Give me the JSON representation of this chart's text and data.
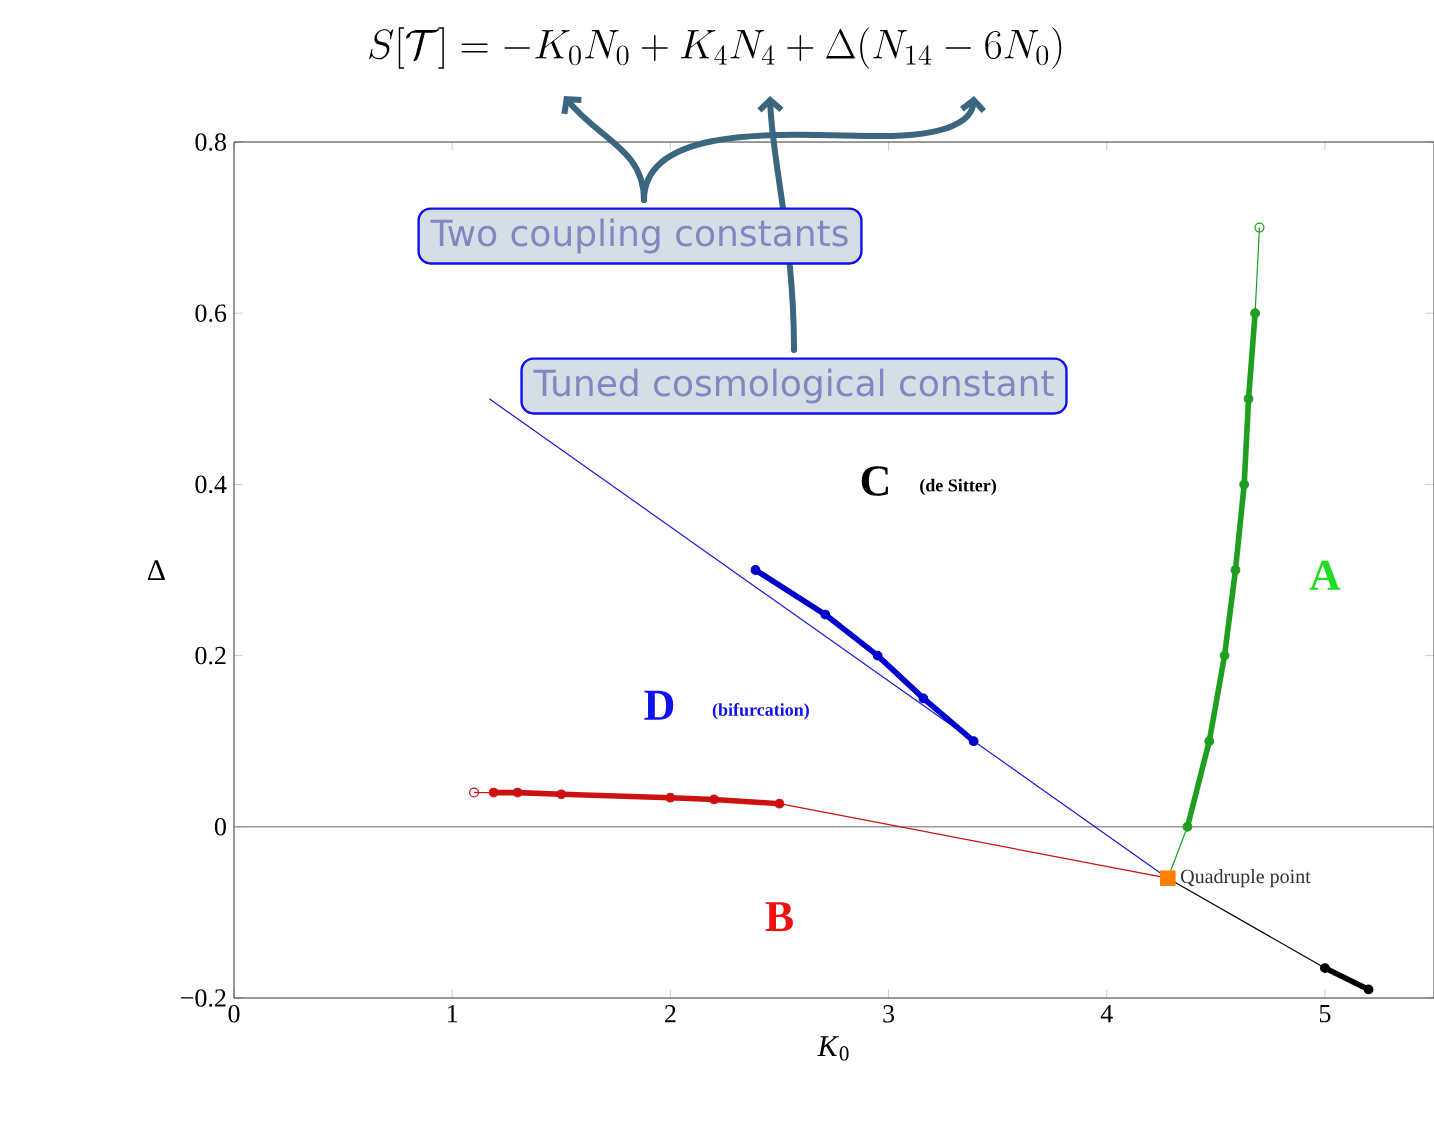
{
  "chart_data": {
    "type": "line",
    "title": "S[\\mathcal{T}] = -K_0 N_0 + K_4 N_4 + \\Delta(N_{14} - 6N_0)",
    "xlabel": "*K*$_{0}$",
    "ylabel": "Δ",
    "xlim": [
      0,
      5.5
    ],
    "ylim": [
      -0.2,
      0.8
    ],
    "xticks": [
      0,
      1,
      2,
      3,
      4,
      5
    ],
    "yticks": [
      {
        "value": -0.2,
        "label": "−0.2"
      },
      0,
      0.2,
      0.4,
      0.6,
      0.8
    ],
    "ref_lines": [
      {
        "axis": "y",
        "value": 0,
        "color": "#999999"
      }
    ],
    "series": [
      {
        "color": "#1f9e1f",
        "x": [
          4.28,
          4.37
        ],
        "values": [
          -0.06,
          0
        ]
      },
      {
        "color": "#1f9e1f",
        "x": [
          4.68,
          4.7
        ],
        "values": [
          0.6,
          0.7
        ]
      },
      {
        "type": "scatter",
        "color": "#1f9e1f",
        "marker": "circle",
        "x": [
          4.7
        ],
        "values": [
          0.7
        ]
      },
      {
        "color": "#1f9e1f",
        "marker": "circle",
        "x": [
          4.37,
          4.47,
          4.54,
          4.59,
          4.63,
          4.65,
          4.68
        ],
        "values": [
          0,
          0.1,
          0.2,
          0.3,
          0.4,
          0.5,
          0.6
        ]
      },
      {
        "color": "#cc1111",
        "x": [
          1.1,
          1.19
        ],
        "values": [
          0.04,
          0.04
        ]
      },
      {
        "color": "#cc1111",
        "x": [
          2.5,
          4.28
        ],
        "values": [
          0.027,
          -0.06
        ]
      },
      {
        "type": "scatter",
        "color": "#cc1111",
        "marker": "circle",
        "x": [
          1.1
        ],
        "values": [
          0.04
        ]
      },
      {
        "color": "#cc1111",
        "marker": "circle",
        "x": [
          1.19,
          1.3,
          1.5,
          2.0,
          2.2,
          2.5
        ],
        "values": [
          0.04,
          0.04,
          0.038,
          0.034,
          0.032,
          0.027
        ]
      },
      {
        "color": "#1a1add",
        "x": [
          1.17,
          4.28
        ],
        "values": [
          0.5,
          -0.06
        ]
      },
      {
        "color": "#0000cc",
        "marker": "circle",
        "x": [
          2.39,
          2.71,
          2.95,
          3.16,
          3.39
        ],
        "values": [
          0.3,
          0.248,
          0.2,
          0.15,
          0.1
        ]
      },
      {
        "color": "#000000",
        "x": [
          4.28,
          5.0
        ],
        "values": [
          -0.06,
          -0.165
        ]
      },
      {
        "color": "#000000",
        "marker": "circle",
        "x": [
          5.0,
          5.2
        ],
        "values": [
          -0.165,
          -0.19
        ]
      },
      {
        "type": "scatter",
        "color": "#ff7f00",
        "marker": "square",
        "x": [
          4.28
        ],
        "values": [
          -0.06
        ]
      }
    ],
    "annotations": [
      "C",
      "(de Sitter)",
      "D",
      "(bifurcation)",
      "A",
      "B",
      {
        "text": "Quadruple point",
        "x": 4.28,
        "y": -0.06
      },
      "Two coupling constants",
      "Tuned cosmological constant"
    ]
  }
}
